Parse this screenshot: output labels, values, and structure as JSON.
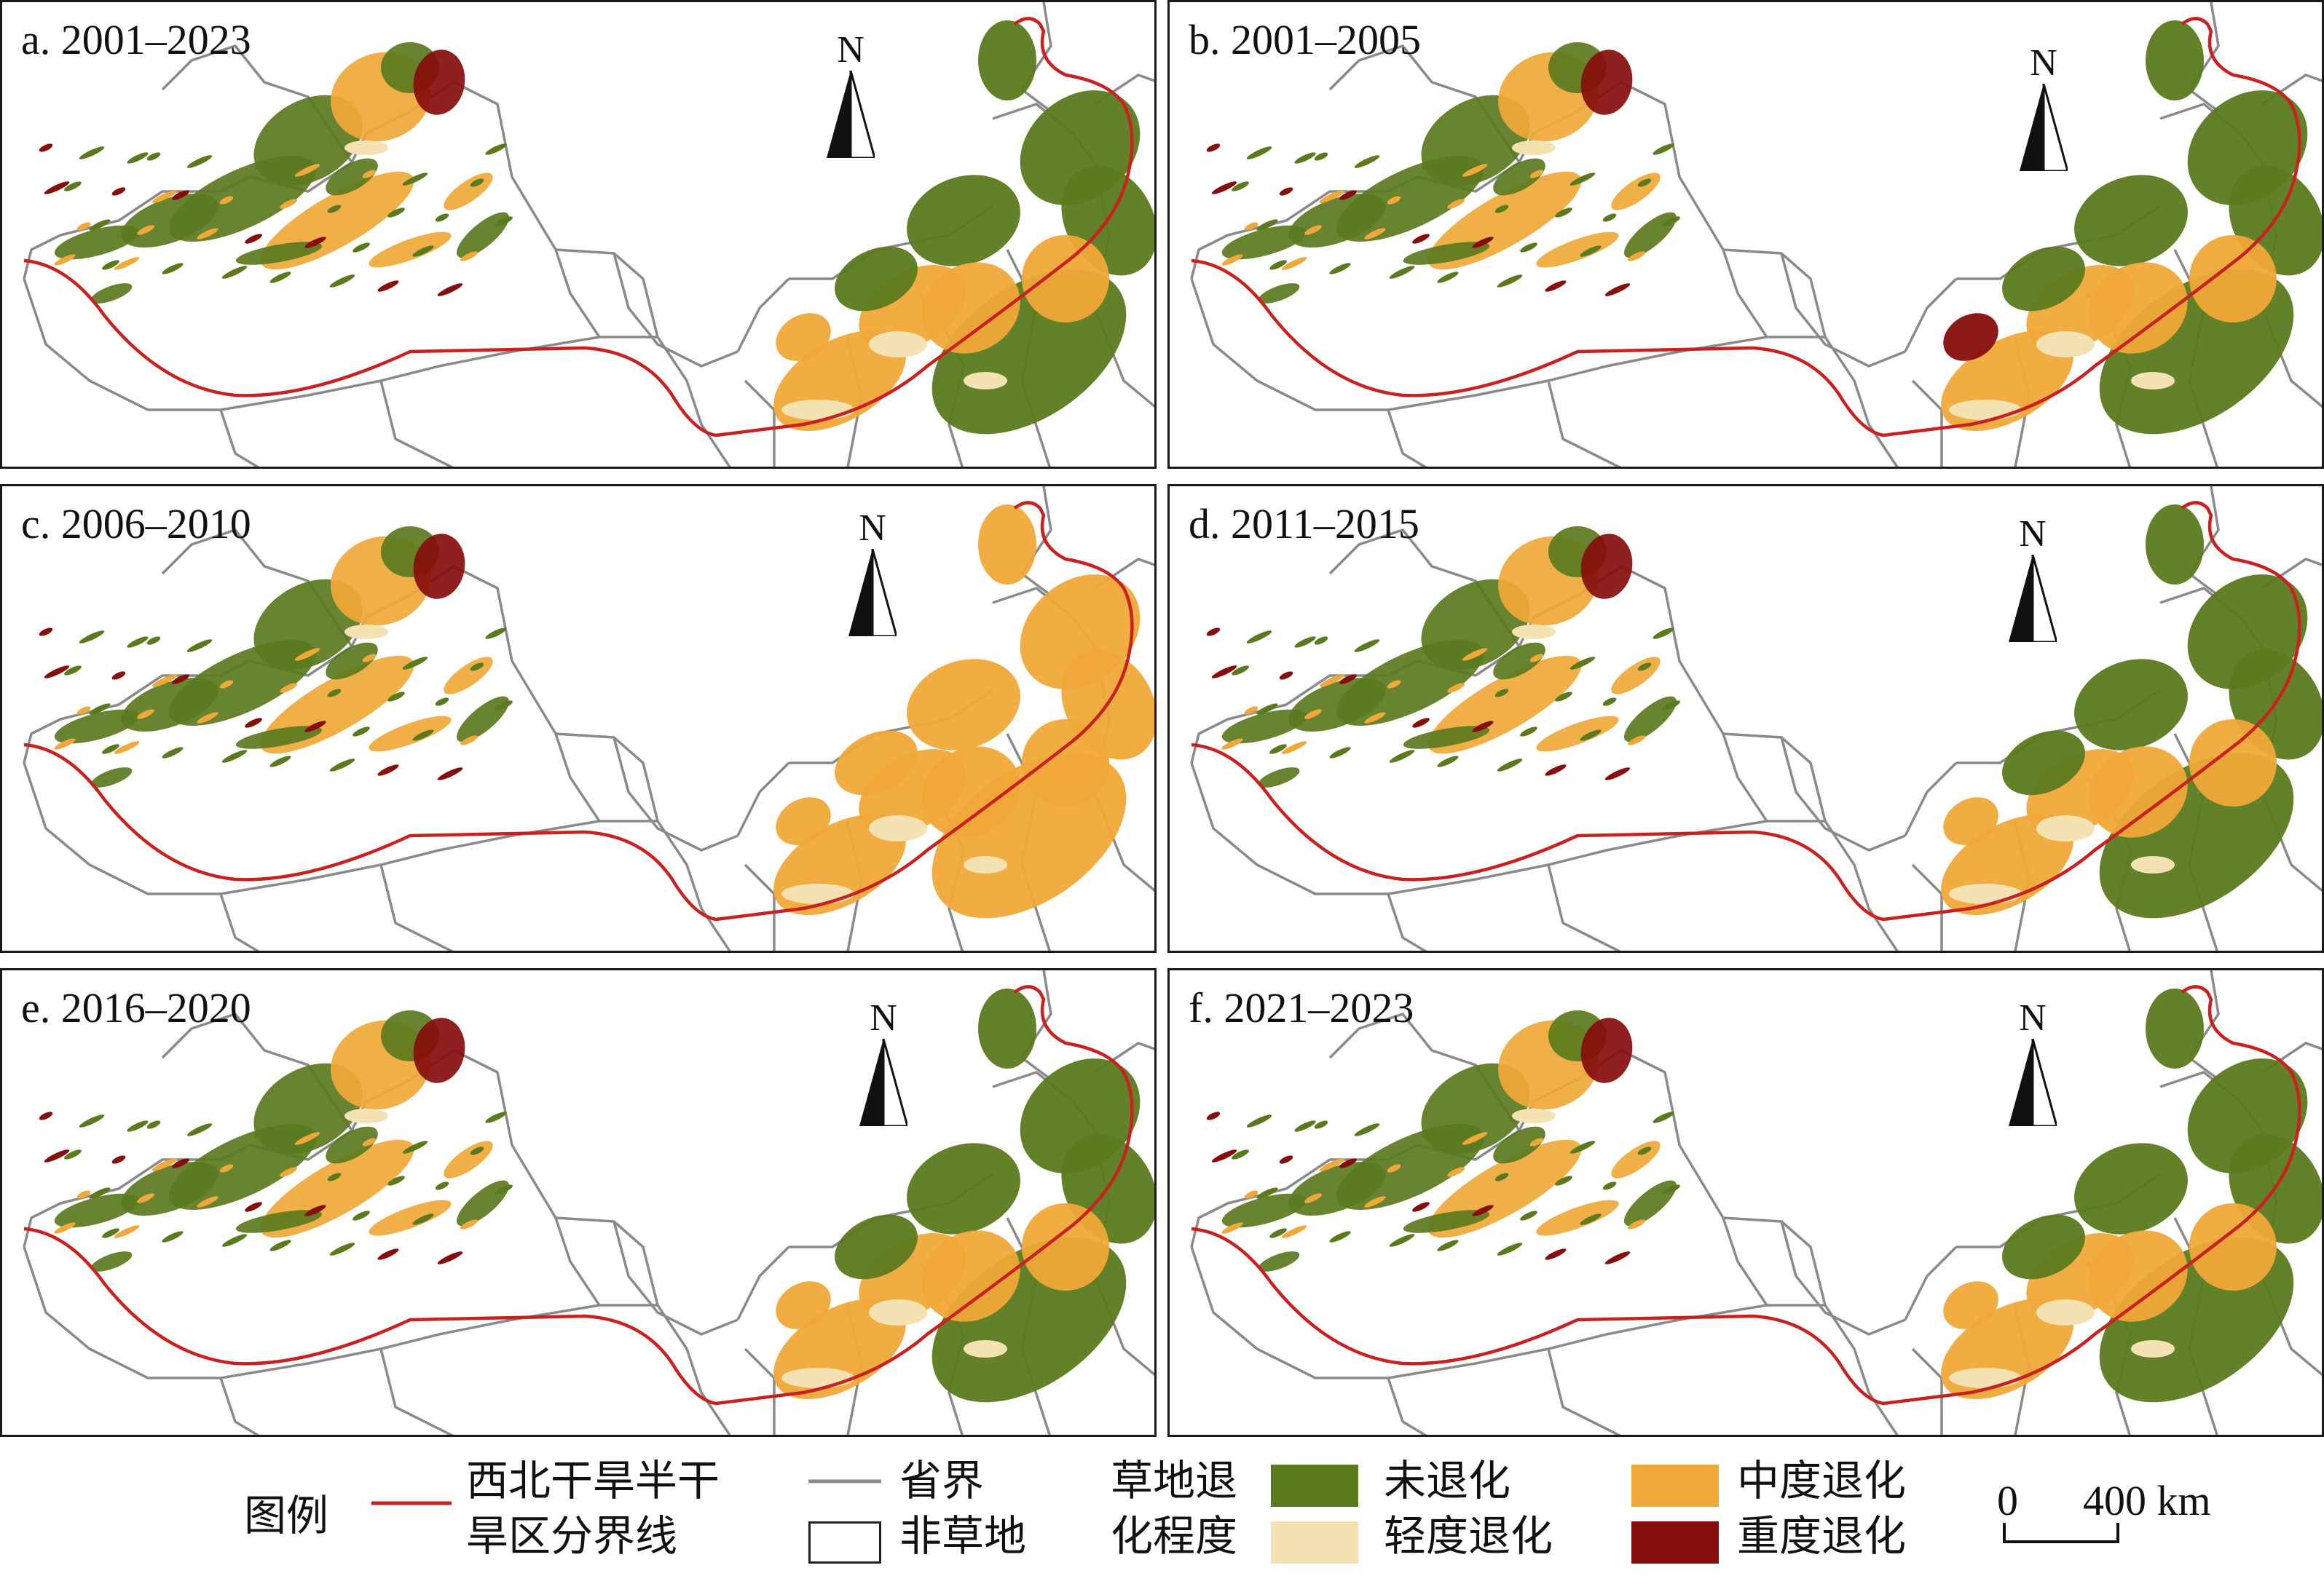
{
  "panels": [
    {
      "label": "a. 2001–2023",
      "variant": "a"
    },
    {
      "label": "b. 2001–2005",
      "variant": "b"
    },
    {
      "label": "c. 2006–2010",
      "variant": "c"
    },
    {
      "label": "d. 2011–2015",
      "variant": "d"
    },
    {
      "label": "e. 2016–2020",
      "variant": "e"
    },
    {
      "label": "f. 2021–2023",
      "variant": "f"
    }
  ],
  "north_label": "N",
  "legend": {
    "title": "图例",
    "boundary_line": {
      "label_line1": "西北干旱半干",
      "label_line2": "旱区分界线",
      "color": "#c8211f"
    },
    "province": {
      "label": "省界",
      "color": "#8a8a8a"
    },
    "non_grassland": {
      "label": "非草地",
      "color": "#ffffff"
    },
    "degradation_title_line1": "草地退",
    "degradation_title_line2": "化程度",
    "classes": [
      {
        "label": "未退化",
        "color": "#5b7a1e"
      },
      {
        "label": "轻度退化",
        "color": "#f5e2b2"
      },
      {
        "label": "中度退化",
        "color": "#f0a838"
      },
      {
        "label": "重度退化",
        "color": "#870d0d"
      }
    ]
  },
  "scale_bar": {
    "start": "0",
    "end": "400 km"
  }
}
